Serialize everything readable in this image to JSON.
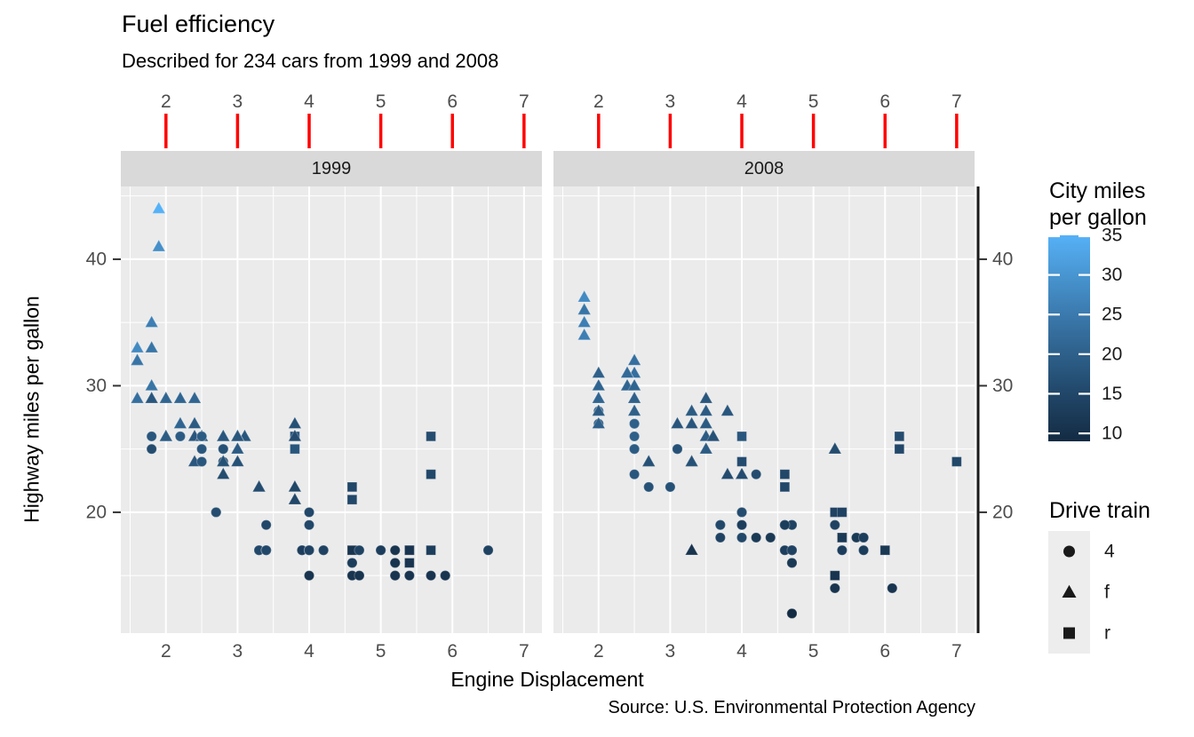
{
  "title": "Fuel efficiency",
  "subtitle": "Described for 234 cars from 1999 and 2008",
  "caption": "Source: U.S. Environmental Protection Agency",
  "axes": {
    "x_title": "Engine Displacement",
    "y_title": "Highway miles per gallon",
    "x_ticks": [
      2,
      3,
      4,
      5,
      6,
      7
    ],
    "y_ticks": [
      20,
      30,
      40
    ]
  },
  "facets": [
    {
      "label": "1999"
    },
    {
      "label": "2008"
    }
  ],
  "legends": {
    "color": {
      "title_lines": [
        "City miles",
        "per gallon"
      ],
      "ticks": [
        35,
        30,
        25,
        20,
        15,
        10
      ],
      "range": [
        9,
        35
      ],
      "low": "#132B43",
      "high": "#56B1F7"
    },
    "shape": {
      "title": "Drive train",
      "items": [
        {
          "shape": "circle",
          "label": "4"
        },
        {
          "shape": "triangle",
          "label": "f"
        },
        {
          "shape": "square",
          "label": "r"
        }
      ]
    }
  },
  "style": {
    "background": "#FFFFFF",
    "panel_bg": "#EBEBEB",
    "strip_bg": "#D9D9D9",
    "grid": "#FFFFFF",
    "tick_label_color": "#4D4D4D",
    "strip_text_color": "#1A1A1A",
    "top_tick_color": "#FF0000",
    "axis_line_color": "#1A1A1A",
    "legend_key_bg": "#EDEDED",
    "symbol_color": "#1A1A1A"
  },
  "chart_data": {
    "type": "scatter",
    "facet_by": "year",
    "x": "Engine Displacement",
    "y": "Highway miles per gallon",
    "color": "City miles per gallon",
    "shape": "Drive train",
    "x_domain": [
      1.37,
      7.25
    ],
    "y_domain": [
      10.45,
      45.75
    ],
    "x_ticks": [
      2,
      3,
      4,
      5,
      6,
      7
    ],
    "x_minor": [
      1.5,
      2.5,
      3.5,
      4.5,
      5.5,
      6.5
    ],
    "y_ticks": [
      20,
      30,
      40
    ],
    "y_minor": [
      15,
      25,
      35,
      45
    ],
    "color_domain": [
      9,
      35
    ],
    "point_format": [
      "displ",
      "hwy",
      "cty",
      "drv"
    ],
    "points_1999": [
      [
        1.8,
        29,
        18,
        "f"
      ],
      [
        1.8,
        29,
        21,
        "f"
      ],
      [
        2.8,
        26,
        16,
        "f"
      ],
      [
        2.8,
        26,
        18,
        "f"
      ],
      [
        1.8,
        26,
        18,
        "4"
      ],
      [
        1.8,
        25,
        16,
        "4"
      ],
      [
        2.8,
        25,
        15,
        "4"
      ],
      [
        2.8,
        25,
        17,
        "4"
      ],
      [
        2.8,
        24,
        15,
        "4"
      ],
      [
        5.7,
        17,
        13,
        "r"
      ],
      [
        5.7,
        26,
        16,
        "r"
      ],
      [
        5.7,
        23,
        15,
        "r"
      ],
      [
        5.7,
        15,
        11,
        "4"
      ],
      [
        6.5,
        17,
        14,
        "4"
      ],
      [
        2.4,
        27,
        19,
        "f"
      ],
      [
        3.1,
        26,
        18,
        "f"
      ],
      [
        2.4,
        24,
        18,
        "f"
      ],
      [
        3.0,
        24,
        17,
        "f"
      ],
      [
        3.3,
        22,
        16,
        "f"
      ],
      [
        3.3,
        22,
        16,
        "f"
      ],
      [
        3.8,
        22,
        15,
        "f"
      ],
      [
        3.8,
        21,
        15,
        "f"
      ],
      [
        3.9,
        17,
        13,
        "4"
      ],
      [
        3.9,
        17,
        14,
        "4"
      ],
      [
        5.2,
        17,
        11,
        "4"
      ],
      [
        5.2,
        15,
        11,
        "4"
      ],
      [
        3.9,
        17,
        13,
        "4"
      ],
      [
        5.2,
        16,
        11,
        "4"
      ],
      [
        5.9,
        15,
        11,
        "4"
      ],
      [
        5.2,
        15,
        11,
        "4"
      ],
      [
        5.2,
        16,
        11,
        "4"
      ],
      [
        5.9,
        15,
        11,
        "4"
      ],
      [
        4.6,
        17,
        11,
        "r"
      ],
      [
        5.4,
        17,
        11,
        "r"
      ],
      [
        4.0,
        17,
        14,
        "4"
      ],
      [
        4.0,
        19,
        15,
        "4"
      ],
      [
        4.0,
        17,
        14,
        "4"
      ],
      [
        5.0,
        17,
        13,
        "4"
      ],
      [
        4.2,
        17,
        14,
        "4"
      ],
      [
        4.2,
        17,
        14,
        "4"
      ],
      [
        4.6,
        16,
        13,
        "4"
      ],
      [
        4.6,
        16,
        13,
        "4"
      ],
      [
        5.4,
        15,
        11,
        "4"
      ],
      [
        3.8,
        26,
        18,
        "r"
      ],
      [
        3.8,
        25,
        18,
        "r"
      ],
      [
        4.6,
        21,
        15,
        "r"
      ],
      [
        4.6,
        22,
        15,
        "r"
      ],
      [
        1.6,
        33,
        28,
        "f"
      ],
      [
        1.6,
        32,
        24,
        "f"
      ],
      [
        1.6,
        32,
        25,
        "f"
      ],
      [
        1.6,
        29,
        23,
        "f"
      ],
      [
        1.6,
        32,
        24,
        "f"
      ],
      [
        2.4,
        26,
        18,
        "f"
      ],
      [
        2.4,
        27,
        18,
        "f"
      ],
      [
        2.5,
        26,
        18,
        "f"
      ],
      [
        2.5,
        26,
        18,
        "f"
      ],
      [
        2.0,
        26,
        19,
        "f"
      ],
      [
        2.0,
        29,
        19,
        "f"
      ],
      [
        4.0,
        20,
        15,
        "4"
      ],
      [
        4.7,
        17,
        14,
        "4"
      ],
      [
        4.0,
        15,
        11,
        "4"
      ],
      [
        4.6,
        15,
        11,
        "4"
      ],
      [
        5.4,
        17,
        11,
        "r"
      ],
      [
        5.4,
        16,
        11,
        "r"
      ],
      [
        4.0,
        17,
        14,
        "4"
      ],
      [
        5.0,
        17,
        13,
        "4"
      ],
      [
        2.4,
        29,
        21,
        "f"
      ],
      [
        2.4,
        27,
        19,
        "f"
      ],
      [
        3.0,
        26,
        18,
        "f"
      ],
      [
        3.0,
        25,
        19,
        "f"
      ],
      [
        3.3,
        17,
        14,
        "4"
      ],
      [
        3.3,
        17,
        15,
        "4"
      ],
      [
        3.1,
        26,
        18,
        "f"
      ],
      [
        3.8,
        26,
        16,
        "f"
      ],
      [
        3.8,
        27,
        17,
        "f"
      ],
      [
        2.5,
        25,
        18,
        "4"
      ],
      [
        2.5,
        24,
        18,
        "4"
      ],
      [
        2.2,
        26,
        21,
        "4"
      ],
      [
        2.2,
        26,
        19,
        "4"
      ],
      [
        2.5,
        26,
        19,
        "4"
      ],
      [
        2.5,
        26,
        19,
        "4"
      ],
      [
        2.7,
        20,
        15,
        "4"
      ],
      [
        2.7,
        20,
        16,
        "4"
      ],
      [
        3.4,
        19,
        15,
        "4"
      ],
      [
        3.4,
        17,
        15,
        "4"
      ],
      [
        2.2,
        29,
        21,
        "f"
      ],
      [
        2.2,
        27,
        21,
        "f"
      ],
      [
        3.0,
        26,
        18,
        "f"
      ],
      [
        3.0,
        26,
        18,
        "f"
      ],
      [
        2.2,
        27,
        21,
        "f"
      ],
      [
        2.2,
        29,
        21,
        "f"
      ],
      [
        3.0,
        26,
        18,
        "f"
      ],
      [
        3.0,
        26,
        18,
        "f"
      ],
      [
        1.8,
        30,
        24,
        "f"
      ],
      [
        1.8,
        33,
        24,
        "f"
      ],
      [
        1.8,
        35,
        26,
        "f"
      ],
      [
        4.7,
        15,
        11,
        "4"
      ],
      [
        2.7,
        20,
        15,
        "4"
      ],
      [
        2.7,
        20,
        16,
        "4"
      ],
      [
        3.4,
        17,
        15,
        "4"
      ],
      [
        3.4,
        17,
        15,
        "4"
      ],
      [
        2.0,
        29,
        21,
        "f"
      ],
      [
        2.0,
        26,
        19,
        "f"
      ],
      [
        2.8,
        24,
        17,
        "f"
      ],
      [
        1.9,
        44,
        33,
        "f"
      ],
      [
        2.0,
        29,
        21,
        "f"
      ],
      [
        2.0,
        26,
        19,
        "f"
      ],
      [
        2.8,
        23,
        16,
        "f"
      ],
      [
        2.8,
        24,
        17,
        "f"
      ],
      [
        1.9,
        44,
        35,
        "f"
      ],
      [
        1.9,
        41,
        29,
        "f"
      ],
      [
        2.0,
        29,
        21,
        "f"
      ],
      [
        2.0,
        26,
        19,
        "f"
      ],
      [
        1.8,
        29,
        21,
        "f"
      ],
      [
        1.8,
        29,
        18,
        "f"
      ],
      [
        2.8,
        26,
        16,
        "f"
      ],
      [
        2.8,
        26,
        18,
        "f"
      ]
    ],
    "points_2008": [
      [
        2.0,
        31,
        20,
        "f"
      ],
      [
        2.0,
        30,
        21,
        "f"
      ],
      [
        3.1,
        27,
        18,
        "f"
      ],
      [
        2.0,
        28,
        20,
        "4"
      ],
      [
        2.0,
        27,
        19,
        "4"
      ],
      [
        3.1,
        25,
        17,
        "4"
      ],
      [
        3.1,
        25,
        15,
        "4"
      ],
      [
        3.1,
        25,
        17,
        "4"
      ],
      [
        4.2,
        23,
        16,
        "4"
      ],
      [
        5.3,
        20,
        14,
        "r"
      ],
      [
        5.3,
        15,
        11,
        "r"
      ],
      [
        5.3,
        20,
        14,
        "r"
      ],
      [
        6.0,
        17,
        12,
        "r"
      ],
      [
        6.2,
        26,
        16,
        "r"
      ],
      [
        6.2,
        25,
        15,
        "r"
      ],
      [
        7.0,
        24,
        15,
        "r"
      ],
      [
        5.3,
        19,
        14,
        "4"
      ],
      [
        5.3,
        14,
        11,
        "4"
      ],
      [
        2.4,
        30,
        22,
        "f"
      ],
      [
        3.5,
        29,
        18,
        "f"
      ],
      [
        3.6,
        26,
        17,
        "f"
      ],
      [
        3.3,
        24,
        17,
        "f"
      ],
      [
        3.3,
        24,
        17,
        "f"
      ],
      [
        3.3,
        17,
        11,
        "f"
      ],
      [
        3.8,
        23,
        16,
        "f"
      ],
      [
        4.0,
        23,
        16,
        "f"
      ],
      [
        3.7,
        19,
        15,
        "4"
      ],
      [
        3.7,
        18,
        14,
        "4"
      ],
      [
        4.7,
        19,
        14,
        "4"
      ],
      [
        4.7,
        19,
        14,
        "4"
      ],
      [
        4.7,
        12,
        9,
        "4"
      ],
      [
        4.7,
        17,
        13,
        "4"
      ],
      [
        4.7,
        12,
        9,
        "4"
      ],
      [
        4.7,
        17,
        13,
        "4"
      ],
      [
        5.7,
        18,
        13,
        "4"
      ],
      [
        4.7,
        16,
        12,
        "4"
      ],
      [
        4.7,
        12,
        9,
        "4"
      ],
      [
        4.7,
        17,
        13,
        "4"
      ],
      [
        4.7,
        17,
        13,
        "4"
      ],
      [
        4.7,
        16,
        12,
        "4"
      ],
      [
        4.7,
        17,
        13,
        "4"
      ],
      [
        5.7,
        17,
        13,
        "4"
      ],
      [
        5.4,
        18,
        12,
        "r"
      ],
      [
        4.0,
        19,
        13,
        "4"
      ],
      [
        4.6,
        19,
        13,
        "4"
      ],
      [
        4.6,
        17,
        13,
        "4"
      ],
      [
        5.4,
        17,
        13,
        "4"
      ],
      [
        4.0,
        26,
        18,
        "r"
      ],
      [
        4.0,
        24,
        16,
        "r"
      ],
      [
        4.6,
        23,
        15,
        "r"
      ],
      [
        4.6,
        22,
        15,
        "r"
      ],
      [
        5.4,
        20,
        14,
        "r"
      ],
      [
        1.8,
        34,
        26,
        "f"
      ],
      [
        1.8,
        36,
        25,
        "f"
      ],
      [
        1.8,
        36,
        24,
        "f"
      ],
      [
        2.0,
        29,
        21,
        "f"
      ],
      [
        2.4,
        30,
        21,
        "f"
      ],
      [
        2.4,
        31,
        21,
        "f"
      ],
      [
        3.3,
        28,
        19,
        "f"
      ],
      [
        2.0,
        28,
        20,
        "f"
      ],
      [
        2.0,
        27,
        20,
        "f"
      ],
      [
        2.7,
        24,
        17,
        "f"
      ],
      [
        2.7,
        24,
        16,
        "f"
      ],
      [
        2.7,
        24,
        17,
        "f"
      ],
      [
        3.0,
        22,
        17,
        "4"
      ],
      [
        3.7,
        19,
        15,
        "4"
      ],
      [
        4.7,
        12,
        9,
        "4"
      ],
      [
        4.7,
        19,
        14,
        "4"
      ],
      [
        5.7,
        18,
        13,
        "4"
      ],
      [
        6.1,
        14,
        11,
        "4"
      ],
      [
        4.2,
        18,
        12,
        "4"
      ],
      [
        4.4,
        18,
        12,
        "4"
      ],
      [
        5.4,
        18,
        12,
        "r"
      ],
      [
        4.0,
        19,
        13,
        "4"
      ],
      [
        4.6,
        19,
        13,
        "4"
      ],
      [
        2.5,
        31,
        23,
        "f"
      ],
      [
        2.5,
        32,
        23,
        "f"
      ],
      [
        3.5,
        27,
        19,
        "f"
      ],
      [
        3.5,
        26,
        19,
        "f"
      ],
      [
        3.5,
        25,
        19,
        "f"
      ],
      [
        4.0,
        20,
        14,
        "4"
      ],
      [
        5.6,
        18,
        12,
        "4"
      ],
      [
        3.8,
        28,
        18,
        "f"
      ],
      [
        5.3,
        25,
        16,
        "f"
      ],
      [
        2.5,
        27,
        20,
        "4"
      ],
      [
        2.5,
        25,
        19,
        "4"
      ],
      [
        2.5,
        26,
        20,
        "4"
      ],
      [
        2.5,
        23,
        18,
        "4"
      ],
      [
        2.5,
        25,
        20,
        "4"
      ],
      [
        2.5,
        27,
        20,
        "4"
      ],
      [
        2.5,
        25,
        19,
        "4"
      ],
      [
        2.5,
        27,
        20,
        "4"
      ],
      [
        4.0,
        20,
        16,
        "4"
      ],
      [
        4.7,
        17,
        14,
        "4"
      ],
      [
        2.4,
        31,
        21,
        "f"
      ],
      [
        2.4,
        31,
        21,
        "f"
      ],
      [
        3.5,
        28,
        19,
        "f"
      ],
      [
        2.4,
        31,
        21,
        "f"
      ],
      [
        2.4,
        31,
        22,
        "f"
      ],
      [
        3.3,
        27,
        18,
        "f"
      ],
      [
        1.8,
        37,
        28,
        "f"
      ],
      [
        1.8,
        35,
        26,
        "f"
      ],
      [
        5.7,
        18,
        13,
        "4"
      ],
      [
        2.7,
        22,
        17,
        "4"
      ],
      [
        4.0,
        18,
        15,
        "4"
      ],
      [
        4.0,
        20,
        16,
        "4"
      ],
      [
        2.0,
        29,
        21,
        "f"
      ],
      [
        2.0,
        29,
        22,
        "f"
      ],
      [
        2.0,
        29,
        22,
        "f"
      ],
      [
        2.0,
        29,
        21,
        "f"
      ],
      [
        2.5,
        29,
        21,
        "f"
      ],
      [
        2.5,
        30,
        21,
        "f"
      ],
      [
        2.5,
        28,
        20,
        "f"
      ],
      [
        2.5,
        29,
        20,
        "f"
      ],
      [
        2.0,
        28,
        19,
        "f"
      ],
      [
        2.0,
        29,
        21,
        "f"
      ],
      [
        3.6,
        26,
        17,
        "f"
      ]
    ]
  }
}
